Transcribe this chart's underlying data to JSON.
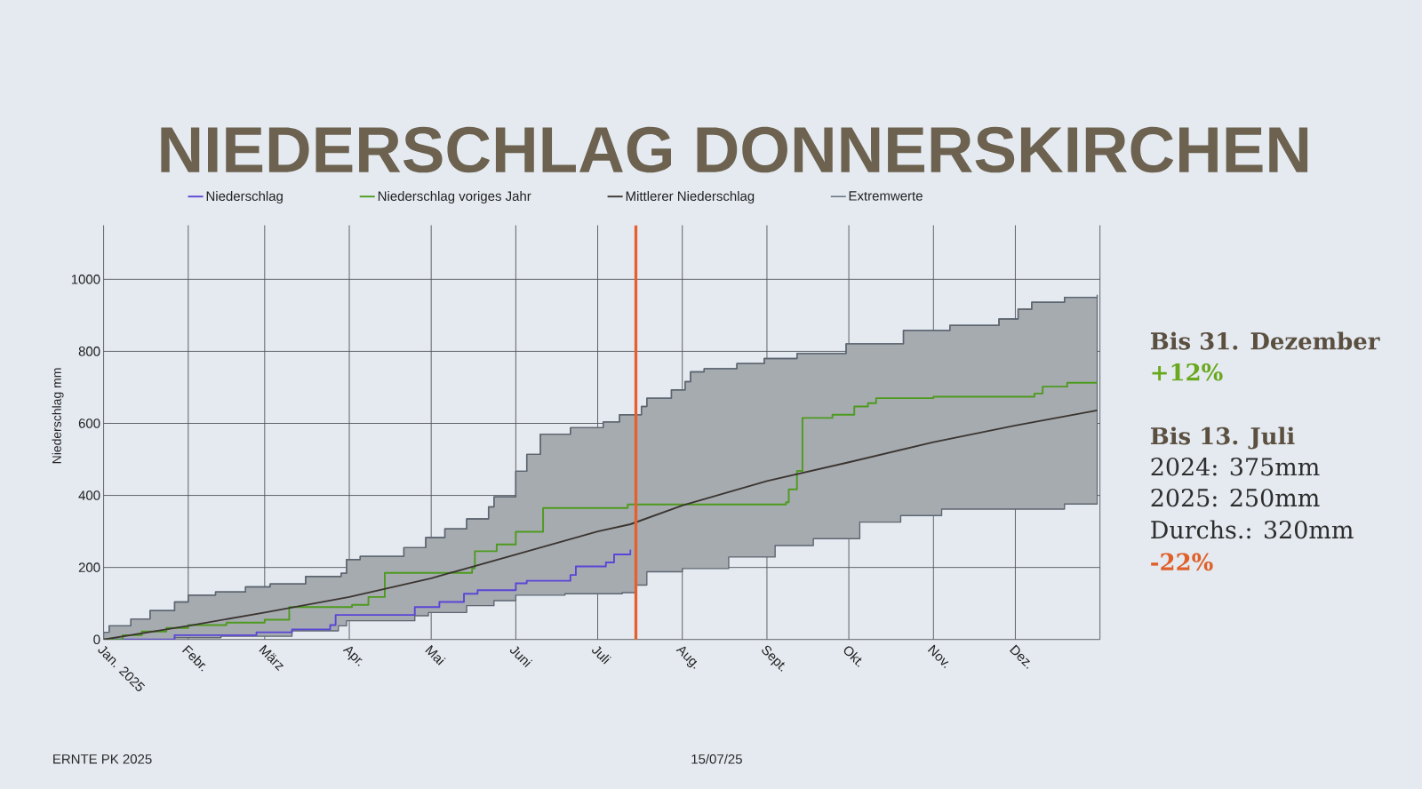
{
  "chart_data": {
    "type": "line",
    "title": "NIEDERSCHLAG DONNERSKIRCHEN",
    "ylabel": "Niederschlag mm",
    "annotations": [
      "Bis 31. Dezember",
      "+12%",
      "Bis 13. Juli",
      "2024: 375mm",
      "2025: 250mm",
      "Durchs.: 320mm",
      "-22%",
      "ERNTE PK 2025",
      "15/07/25"
    ],
    "xlim": [
      "2025-01-01",
      "2026-01-01"
    ],
    "xticks": [
      {
        "value": "2025-01-01",
        "label": "Jan. 2025"
      },
      {
        "value": "2025-02-01",
        "label": "Febr."
      },
      {
        "value": "2025-03-01",
        "label": "März"
      },
      {
        "value": "2025-04-01",
        "label": "Apr."
      },
      {
        "value": "2025-05-01",
        "label": "Mai"
      },
      {
        "value": "2025-06-01",
        "label": "Juni"
      },
      {
        "value": "2025-07-01",
        "label": "Juli"
      },
      {
        "value": "2025-08-01",
        "label": "Aug."
      },
      {
        "value": "2025-09-01",
        "label": "Sept."
      },
      {
        "value": "2025-10-01",
        "label": "Okt."
      },
      {
        "value": "2025-11-01",
        "label": "Nov."
      },
      {
        "value": "2025-12-01",
        "label": "Dez."
      },
      {
        "value": "2026-01-01",
        "label": null
      }
    ],
    "ylim": [
      0,
      1150
    ],
    "yticks": [
      0,
      200,
      400,
      600,
      800,
      1000
    ],
    "grid": true,
    "legend": "top",
    "ref_lines": [
      {
        "axis": "x",
        "value": "2025-07-15",
        "color": "#e4602c"
      }
    ],
    "series": [
      {
        "name": "Niederschlag",
        "type": "step",
        "color": "#5a46d6",
        "x": [
          "2025-01-01",
          "2025-01-27",
          "2025-02-26",
          "2025-03-11",
          "2025-03-25",
          "2025-03-27",
          "2025-04-25",
          "2025-05-04",
          "2025-05-13",
          "2025-05-18",
          "2025-06-01",
          "2025-06-05",
          "2025-06-21",
          "2025-06-23",
          "2025-07-04",
          "2025-07-07",
          "2025-07-13"
        ],
        "values": [
          0,
          12,
          20,
          28,
          40,
          68,
          90,
          104,
          127,
          137,
          156,
          163,
          179,
          203,
          214,
          236,
          250
        ]
      },
      {
        "name": "Niederschlag voriges Jahr",
        "type": "step",
        "color": "#4e9a1e",
        "x": [
          "2025-01-01",
          "2025-01-08",
          "2025-01-15",
          "2025-01-24",
          "2025-02-01",
          "2025-02-15",
          "2025-03-01",
          "2025-03-10",
          "2025-04-02",
          "2025-04-08",
          "2025-04-14",
          "2025-05-16",
          "2025-05-17",
          "2025-05-25",
          "2025-06-01",
          "2025-06-11",
          "2025-07-12",
          "2025-09-08",
          "2025-09-09",
          "2025-09-12",
          "2025-09-14",
          "2025-09-25",
          "2025-10-03",
          "2025-10-08",
          "2025-10-11",
          "2025-11-01",
          "2025-12-08",
          "2025-12-11",
          "2025-12-20",
          "2025-12-31"
        ],
        "values": [
          0,
          12,
          22,
          32,
          40,
          47,
          55,
          90,
          96,
          118,
          185,
          198,
          245,
          264,
          299,
          365,
          375,
          381,
          417,
          468,
          615,
          624,
          647,
          656,
          670,
          674,
          683,
          702,
          713,
          713
        ]
      },
      {
        "name": "Mittlerer Niederschlag",
        "color": "#3b3530",
        "x": [
          "2025-01-01",
          "2025-02-01",
          "2025-03-01",
          "2025-04-01",
          "2025-05-01",
          "2025-06-01",
          "2025-07-01",
          "2025-07-13",
          "2025-08-01",
          "2025-09-01",
          "2025-10-01",
          "2025-11-01",
          "2025-12-01",
          "2025-12-31"
        ],
        "values": [
          0,
          38,
          75,
          118,
          170,
          236,
          300,
          320,
          372,
          440,
          492,
          548,
          594,
          636
        ]
      },
      {
        "name": "Extremwerte",
        "type": "step",
        "color": "#5d6670",
        "x": [
          "2025-01-01",
          "2025-01-03",
          "2025-01-11",
          "2025-01-18",
          "2025-01-27",
          "2025-02-01",
          "2025-02-11",
          "2025-02-13",
          "2025-02-22",
          "2025-03-03",
          "2025-03-11",
          "2025-03-16",
          "2025-03-28",
          "2025-03-29",
          "2025-03-31",
          "2025-04-05",
          "2025-04-21",
          "2025-04-25",
          "2025-04-29",
          "2025-04-30",
          "2025-05-06",
          "2025-05-14",
          "2025-05-22",
          "2025-05-24",
          "2025-06-01",
          "2025-06-05",
          "2025-06-10",
          "2025-06-19",
          "2025-06-21",
          "2025-07-03",
          "2025-07-09",
          "2025-07-10",
          "2025-07-15",
          "2025-07-17",
          "2025-07-19",
          "2025-07-28",
          "2025-08-01",
          "2025-08-02",
          "2025-08-04",
          "2025-08-09",
          "2025-08-18",
          "2025-08-21",
          "2025-08-31",
          "2025-09-04",
          "2025-09-12",
          "2025-09-18",
          "2025-09-30",
          "2025-10-05",
          "2025-10-20",
          "2025-10-21",
          "2025-11-04",
          "2025-11-07",
          "2025-11-25",
          "2025-12-02",
          "2025-12-07",
          "2025-12-19",
          "2025-12-31"
        ],
        "values": [
          20,
          38,
          57,
          80,
          104,
          123,
          132,
          132,
          146,
          154,
          154,
          175,
          175,
          184,
          222,
          231,
          255,
          255,
          283,
          283,
          307,
          335,
          368,
          396,
          467,
          514,
          570,
          570,
          588,
          604,
          624,
          624,
          624,
          647,
          670,
          693,
          693,
          716,
          743,
          752,
          752,
          766,
          780,
          780,
          794,
          794,
          821,
          821,
          821,
          858,
          858,
          872,
          890,
          917,
          936,
          950,
          956
        ],
        "lower": [
          0,
          0,
          0,
          0,
          5,
          5,
          5,
          9,
          9,
          9,
          24,
          24,
          38,
          38,
          52,
          52,
          52,
          66,
          66,
          75,
          75,
          94,
          94,
          108,
          123,
          123,
          123,
          127,
          127,
          127,
          127,
          130,
          151,
          151,
          188,
          188,
          197,
          197,
          197,
          197,
          229,
          229,
          229,
          261,
          261,
          280,
          280,
          326,
          344,
          344,
          362,
          362,
          362,
          362,
          362,
          376,
          381
        ],
        "upper": [
          20,
          38,
          57,
          80,
          104,
          123,
          132,
          132,
          146,
          154,
          154,
          175,
          175,
          184,
          222,
          231,
          255,
          255,
          283,
          283,
          307,
          335,
          368,
          396,
          467,
          514,
          570,
          570,
          588,
          604,
          624,
          624,
          624,
          647,
          670,
          693,
          693,
          716,
          743,
          752,
          752,
          766,
          780,
          780,
          794,
          794,
          821,
          821,
          821,
          858,
          858,
          872,
          890,
          917,
          936,
          950,
          956
        ]
      }
    ]
  }
}
